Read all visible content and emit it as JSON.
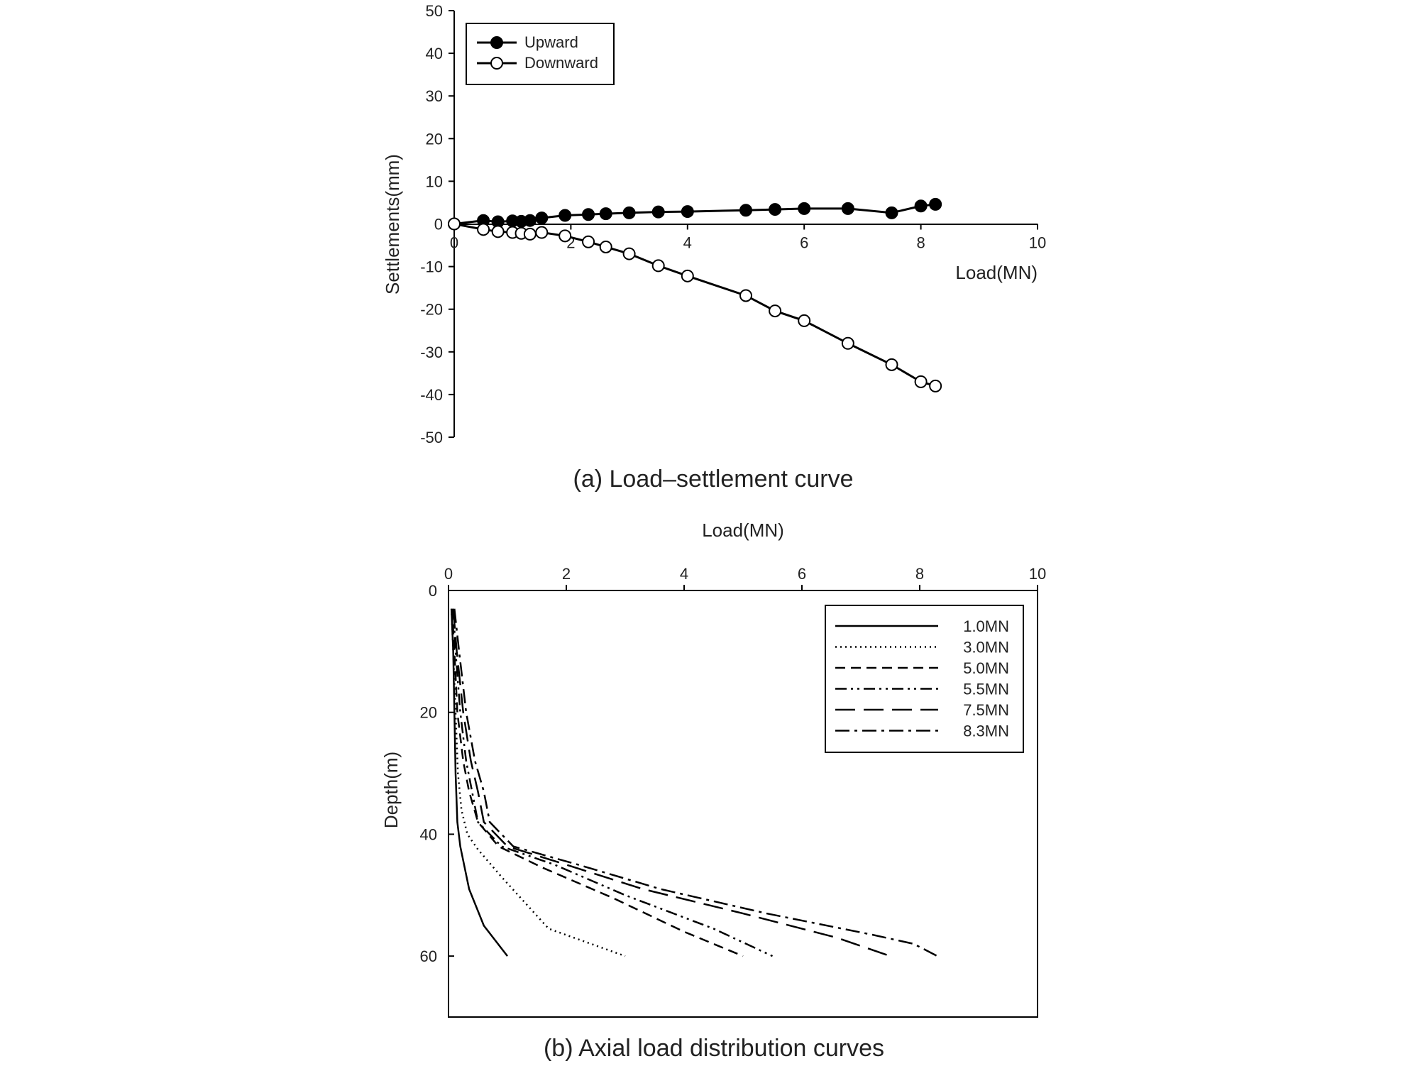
{
  "chart_data": [
    {
      "type": "line",
      "caption": "(a) Load–settlement curve",
      "xlabel": "Load(MN)",
      "ylabel": "Settlements(mm)",
      "xlim": [
        0,
        10
      ],
      "ylim": [
        -50,
        50
      ],
      "xticks": [
        "0",
        "2",
        "4",
        "6",
        "8",
        "10"
      ],
      "yticks": [
        "50",
        "40",
        "30",
        "20",
        "10",
        "0",
        "-10",
        "-20",
        "-30",
        "-40",
        "-50"
      ],
      "legend_position": "top-left",
      "series": [
        {
          "name": "Upward",
          "marker": "filled-circle",
          "x": [
            0,
            0.5,
            0.75,
            1.0,
            1.15,
            1.3,
            1.5,
            1.9,
            2.3,
            2.6,
            3.0,
            3.5,
            4.0,
            5.0,
            5.5,
            6.0,
            6.75,
            7.5,
            8.0,
            8.25
          ],
          "y": [
            0,
            0.8,
            0.5,
            0.7,
            0.6,
            0.8,
            1.4,
            2.0,
            2.2,
            2.4,
            2.6,
            2.8,
            2.9,
            3.2,
            3.4,
            3.6,
            3.6,
            2.6,
            4.2,
            4.6
          ]
        },
        {
          "name": "Downward",
          "marker": "open-circle",
          "x": [
            0,
            0.5,
            0.75,
            1.0,
            1.15,
            1.3,
            1.5,
            1.9,
            2.3,
            2.6,
            3.0,
            3.5,
            4.0,
            5.0,
            5.5,
            6.0,
            6.75,
            7.5,
            8.0,
            8.25
          ],
          "y": [
            0,
            -1.3,
            -1.8,
            -2.0,
            -2.2,
            -2.4,
            -2.0,
            -2.8,
            -4.2,
            -5.4,
            -7.0,
            -9.8,
            -12.2,
            -16.8,
            -20.4,
            -22.7,
            -28.0,
            -33.0,
            -37.0,
            -38.0
          ]
        }
      ]
    },
    {
      "type": "line",
      "caption": "(b) Axial load distribution curves",
      "xlabel": "Load(MN)",
      "ylabel": "Depth(m)",
      "xlim": [
        0,
        10
      ],
      "ylim": [
        70,
        0
      ],
      "xticks": [
        "0",
        "2",
        "4",
        "6",
        "8",
        "10"
      ],
      "yticks": [
        "0",
        "20",
        "40",
        "60"
      ],
      "legend_position": "top-right",
      "series": [
        {
          "name": "1.0MN",
          "dash": "solid",
          "x": [
            0.05,
            0.08,
            0.1,
            0.12,
            0.15,
            0.2,
            0.35,
            0.6,
            1.0
          ],
          "y": [
            3,
            10,
            20,
            30,
            38,
            42,
            49,
            55,
            60
          ]
        },
        {
          "name": "3.0MN",
          "dash": "dotted",
          "x": [
            0.05,
            0.08,
            0.12,
            0.16,
            0.22,
            0.32,
            0.5,
            0.9,
            1.7,
            3.0
          ],
          "y": [
            3,
            10,
            20,
            30,
            36,
            40,
            42.5,
            47,
            55.5,
            60
          ]
        },
        {
          "name": "5.0MN",
          "dash": "short-dash",
          "x": [
            0.06,
            0.1,
            0.15,
            0.25,
            0.35,
            0.5,
            0.85,
            1.6,
            2.8,
            4.0,
            5.0
          ],
          "y": [
            3,
            10,
            20,
            28,
            33,
            38,
            42,
            45.5,
            50.5,
            56,
            60
          ]
        },
        {
          "name": "5.5MN",
          "dash": "dash-dot-dot",
          "x": [
            0.08,
            0.12,
            0.2,
            0.3,
            0.4,
            0.5,
            0.9,
            1.8,
            3.0,
            4.5,
            5.5
          ],
          "y": [
            3,
            10,
            20,
            28,
            33,
            38,
            42,
            45,
            50,
            55.5,
            60
          ]
        },
        {
          "name": "7.5MN",
          "dash": "long-dash",
          "x": [
            0.08,
            0.14,
            0.25,
            0.38,
            0.5,
            0.6,
            1.0,
            2.0,
            3.3,
            5.0,
            6.6,
            7.5
          ],
          "y": [
            3,
            10,
            20,
            28,
            33,
            38,
            42,
            45,
            49,
            53,
            57,
            60
          ]
        },
        {
          "name": "8.3MN",
          "dash": "dash-dot",
          "x": [
            0.1,
            0.18,
            0.3,
            0.45,
            0.6,
            0.7,
            1.1,
            2.2,
            3.6,
            5.4,
            7.2,
            7.9,
            8.3
          ],
          "y": [
            3,
            10,
            20,
            28,
            33,
            38,
            42,
            45,
            49,
            53,
            56.5,
            58,
            60
          ]
        }
      ]
    }
  ]
}
